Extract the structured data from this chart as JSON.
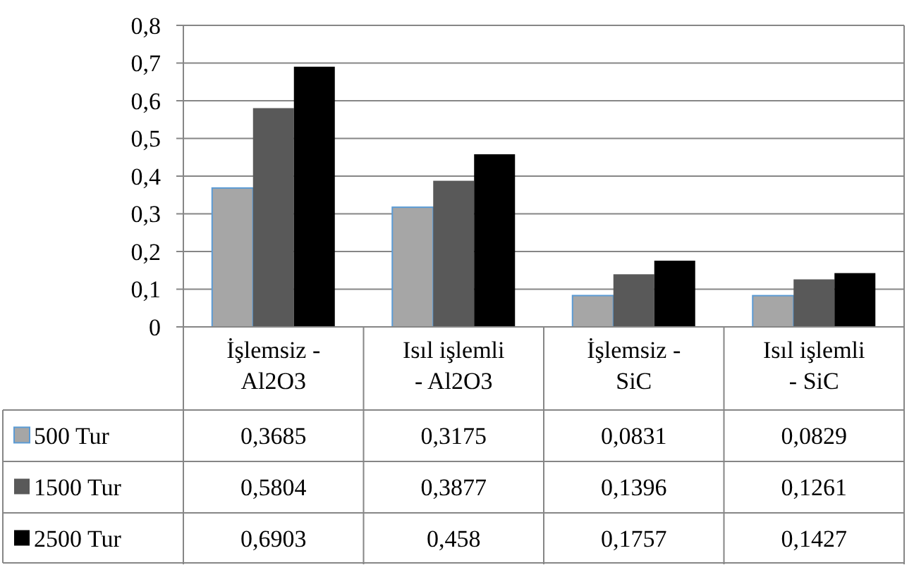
{
  "chart_data": {
    "type": "bar",
    "categories": [
      "İşlemsiz - Al2O3",
      "Isıl işlemli - Al2O3",
      "İşlemsiz - SiC",
      "Isıl işlemli - SiC"
    ],
    "series": [
      {
        "name": "500 Tur",
        "color": "#a6a6a6",
        "values": [
          0.3685,
          0.3175,
          0.0831,
          0.0829
        ],
        "value_labels": [
          "0,3685",
          "0,3175",
          "0,0831",
          "0,0829"
        ]
      },
      {
        "name": "1500 Tur",
        "color": "#595959",
        "values": [
          0.5804,
          0.3877,
          0.1396,
          0.1261
        ],
        "value_labels": [
          "0,5804",
          "0,3877",
          "0,1396",
          "0,1261"
        ]
      },
      {
        "name": "2500 Tur",
        "color": "#000000",
        "values": [
          0.6903,
          0.458,
          0.1757,
          0.1427
        ],
        "value_labels": [
          "0,6903",
          "0,458",
          "0,1757",
          "0,1427"
        ]
      }
    ],
    "ylim": [
      0,
      0.8
    ],
    "yticks": [
      0,
      {
        "value": 0.1,
        "label": "0,1"
      },
      {
        "value": 0.2,
        "label": "0,2"
      },
      {
        "value": 0.3,
        "label": "0,3"
      },
      {
        "value": 0.4,
        "label": "0,4"
      },
      {
        "value": 0.5,
        "label": "0,5"
      },
      {
        "value": 0.6,
        "label": "0,6"
      },
      {
        "value": 0.7,
        "label": "0,7"
      },
      {
        "value": 0.8,
        "label": "0,8"
      }
    ],
    "grid": "y",
    "legend": "bottom left"
  }
}
